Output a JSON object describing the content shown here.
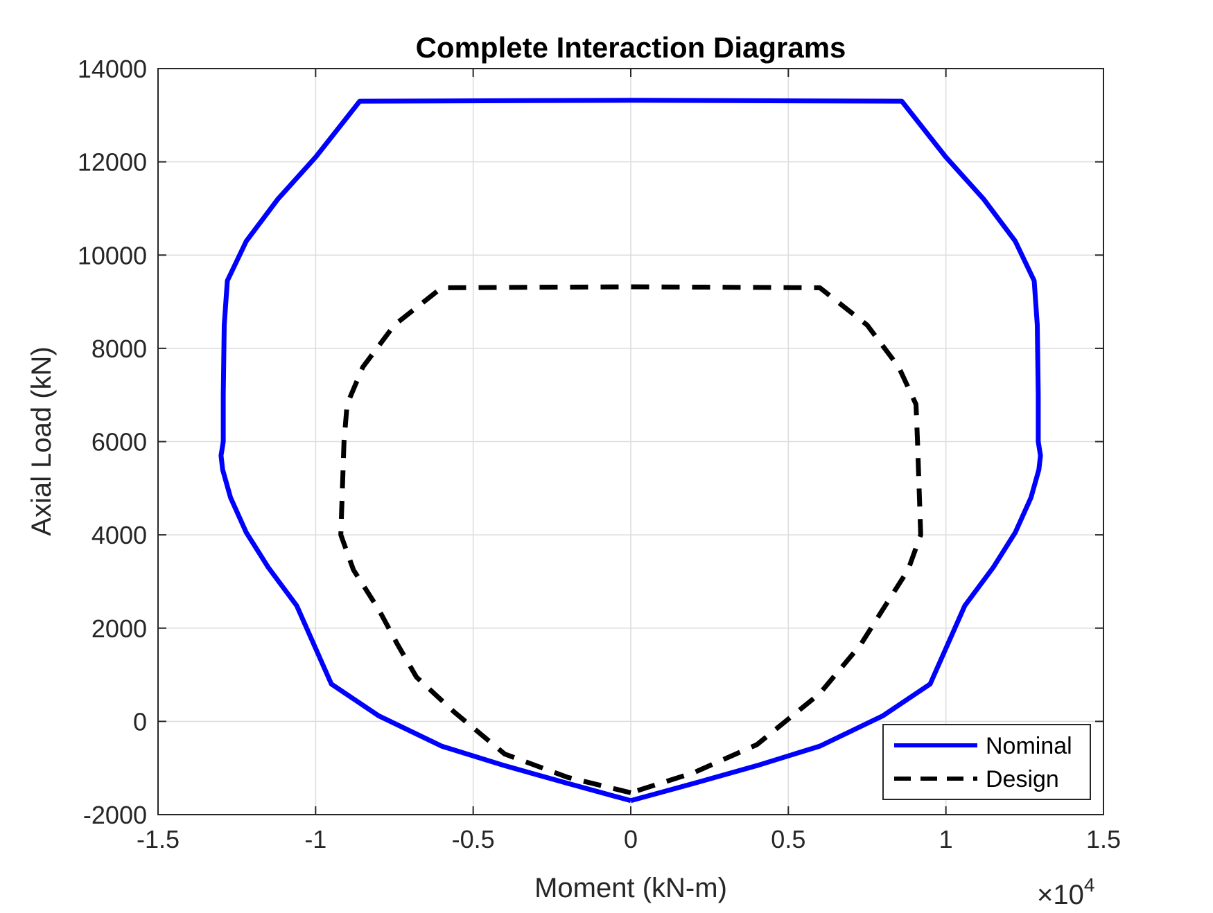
{
  "chart_data": {
    "type": "line",
    "title": "Complete Interaction Diagrams",
    "xlabel": "Moment (kN-m)",
    "ylabel": "Axial Load (kN)",
    "x_exponent_base": "×10",
    "x_exponent_power": "4",
    "xlim": [
      -1.5,
      1.5
    ],
    "ylim": [
      -2000,
      14000
    ],
    "x_ticks": [
      -1.5,
      -1,
      -0.5,
      0,
      0.5,
      1,
      1.5
    ],
    "x_tick_labels": [
      "-1.5",
      "-1",
      "-0.5",
      "0",
      "0.5",
      "1",
      "1.5"
    ],
    "y_ticks": [
      -2000,
      0,
      2000,
      4000,
      6000,
      8000,
      10000,
      12000,
      14000
    ],
    "y_tick_labels": [
      "-2000",
      "0",
      "2000",
      "4000",
      "6000",
      "8000",
      "10000",
      "12000",
      "14000"
    ],
    "grid": true,
    "legend_position": "bottom-right",
    "series": [
      {
        "name": "Nominal",
        "color": "#0000ff",
        "style": "solid",
        "points": [
          [
            0.0,
            -1700
          ],
          [
            -0.2,
            -1330
          ],
          [
            -0.4,
            -950
          ],
          [
            -0.6,
            -530
          ],
          [
            -0.8,
            120
          ],
          [
            -0.95,
            800
          ],
          [
            -1.06,
            2480
          ],
          [
            -1.15,
            3300
          ],
          [
            -1.22,
            4050
          ],
          [
            -1.27,
            4800
          ],
          [
            -1.295,
            5400
          ],
          [
            -1.3,
            5700
          ],
          [
            -1.293,
            6000
          ],
          [
            -1.293,
            7000
          ],
          [
            -1.29,
            8500
          ],
          [
            -1.28,
            9450
          ],
          [
            -1.22,
            10300
          ],
          [
            -1.12,
            11200
          ],
          [
            -1.0,
            12100
          ],
          [
            -0.86,
            13300
          ],
          [
            0.0,
            13320
          ],
          [
            0.86,
            13300
          ],
          [
            1.0,
            12100
          ],
          [
            1.12,
            11200
          ],
          [
            1.22,
            10300
          ],
          [
            1.28,
            9450
          ],
          [
            1.29,
            8500
          ],
          [
            1.293,
            7000
          ],
          [
            1.293,
            6000
          ],
          [
            1.3,
            5700
          ],
          [
            1.295,
            5400
          ],
          [
            1.27,
            4800
          ],
          [
            1.22,
            4050
          ],
          [
            1.15,
            3300
          ],
          [
            1.06,
            2480
          ],
          [
            0.95,
            800
          ],
          [
            0.8,
            120
          ],
          [
            0.6,
            -530
          ],
          [
            0.4,
            -950
          ],
          [
            0.2,
            -1330
          ],
          [
            0.0,
            -1700
          ]
        ]
      },
      {
        "name": "Design",
        "color": "#000000",
        "style": "dashed",
        "points": [
          [
            0.0,
            -1530
          ],
          [
            -0.2,
            -1200
          ],
          [
            -0.4,
            -700
          ],
          [
            -0.56,
            200
          ],
          [
            -0.68,
            950
          ],
          [
            -0.74,
            1650
          ],
          [
            -0.8,
            2400
          ],
          [
            -0.88,
            3250
          ],
          [
            -0.92,
            4000
          ],
          [
            -0.915,
            5000
          ],
          [
            -0.91,
            6000
          ],
          [
            -0.9,
            6800
          ],
          [
            -0.85,
            7600
          ],
          [
            -0.75,
            8500
          ],
          [
            -0.6,
            9300
          ],
          [
            0.0,
            9320
          ],
          [
            0.6,
            9300
          ],
          [
            0.75,
            8500
          ],
          [
            0.85,
            7600
          ],
          [
            0.905,
            6800
          ],
          [
            0.91,
            6000
          ],
          [
            0.915,
            5000
          ],
          [
            0.92,
            4000
          ],
          [
            0.88,
            3250
          ],
          [
            0.8,
            2400
          ],
          [
            0.73,
            1650
          ],
          [
            0.6,
            600
          ],
          [
            0.4,
            -500
          ],
          [
            0.2,
            -1100
          ],
          [
            0.0,
            -1530
          ]
        ]
      }
    ]
  }
}
